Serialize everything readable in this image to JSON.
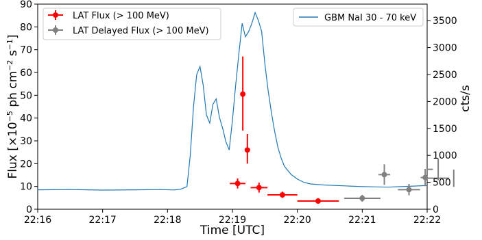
{
  "chart_data": {
    "type": "scatter",
    "x_axis": {
      "label": "Time [UTC]",
      "tick_labels": [
        "22:16",
        "22:17",
        "22:18",
        "22:19",
        "22:20",
        "22:21",
        "22:22"
      ],
      "range_minutes": [
        0,
        6
      ]
    },
    "y_left": {
      "label": "Flux [×10",
      "label_exp": "−5",
      "label_units": " ph cm",
      "label_exp2": "−2",
      "label_units2": " s",
      "label_exp3": "−1",
      "label_close": "]",
      "ticks": [
        0,
        10,
        20,
        30,
        40,
        50,
        60,
        70,
        80,
        90
      ],
      "ylim": [
        0,
        90
      ]
    },
    "y_right": {
      "label": "cts/s",
      "ticks": [
        0,
        500,
        1000,
        1500,
        2000,
        2500,
        3000,
        3500
      ],
      "ylim": [
        0,
        3807
      ]
    },
    "series": [
      {
        "name": "LAT Flux (> 100 MeV)",
        "color": "#ff0000",
        "axis": "left",
        "points": [
          {
            "x": 3.08,
            "y": 11.3,
            "xerr": [
              0.12,
              0.12
            ],
            "yerr": [
              2.2,
              2.2
            ]
          },
          {
            "x": 3.16,
            "y": 50.5,
            "xerr": [
              0.03,
              0.03
            ],
            "yerr": [
              16.0,
              16.5
            ]
          },
          {
            "x": 3.23,
            "y": 26.0,
            "xerr": [
              0.03,
              0.03
            ],
            "yerr": [
              6.0,
              7.0
            ]
          },
          {
            "x": 3.41,
            "y": 9.5,
            "xerr": [
              0.13,
              0.13
            ],
            "yerr": [
              2.2,
              2.2
            ]
          },
          {
            "x": 3.77,
            "y": 6.3,
            "xerr": [
              0.23,
              0.23
            ],
            "yerr": [
              1.3,
              1.4
            ]
          },
          {
            "x": 4.32,
            "y": 3.6,
            "xerr": [
              0.32,
              0.32
            ],
            "yerr": [
              0.4,
              0.4
            ]
          }
        ]
      },
      {
        "name": "LAT Delayed Flux (> 100 MeV)",
        "color": "#808080",
        "axis": "left",
        "points": [
          {
            "x": 5.0,
            "y": 4.8,
            "xerr": [
              0.28,
              0.28
            ],
            "yerr": [
              1.5,
              1.5
            ]
          },
          {
            "x": 5.34,
            "y": 15.2,
            "xerr": [
              0.09,
              0.09
            ],
            "yerr": [
              4.5,
              4.5
            ]
          },
          {
            "x": 5.72,
            "y": 8.6,
            "xerr": [
              0.17,
              0.17
            ],
            "yerr": [
              2.5,
              2.5
            ]
          },
          {
            "x": 5.97,
            "y": 13.9,
            "xerr": [
              0.07,
              0.07
            ],
            "yerr": [
              3.8,
              3.8
            ]
          },
          {
            "x": 6.17,
            "y": 17.5,
            "xerr": [
              0.08,
              0.08
            ],
            "yerr": [
              4.8,
              4.8
            ]
          },
          {
            "x": 6.41,
            "y": 13.6,
            "xerr": [
              0.07,
              0.07
            ],
            "yerr": [
              3.8,
              3.8
            ]
          }
        ]
      },
      {
        "name": "GBM NaI 30 - 70 keV",
        "color": "#1f77b4",
        "axis": "right",
        "type": "line",
        "points": [
          [
            0.0,
            360
          ],
          [
            0.5,
            365
          ],
          [
            1.0,
            355
          ],
          [
            1.5,
            360
          ],
          [
            1.9,
            365
          ],
          [
            2.1,
            358
          ],
          [
            2.2,
            370
          ],
          [
            2.3,
            420
          ],
          [
            2.35,
            1000
          ],
          [
            2.4,
            1900
          ],
          [
            2.45,
            2500
          ],
          [
            2.5,
            2650
          ],
          [
            2.55,
            2300
          ],
          [
            2.6,
            1750
          ],
          [
            2.65,
            1600
          ],
          [
            2.7,
            1950
          ],
          [
            2.75,
            2050
          ],
          [
            2.8,
            1700
          ],
          [
            2.85,
            1500
          ],
          [
            2.9,
            1250
          ],
          [
            2.95,
            1100
          ],
          [
            3.0,
            1650
          ],
          [
            3.05,
            2300
          ],
          [
            3.1,
            2900
          ],
          [
            3.15,
            3450
          ],
          [
            3.2,
            3200
          ],
          [
            3.25,
            3300
          ],
          [
            3.3,
            3450
          ],
          [
            3.35,
            3650
          ],
          [
            3.4,
            3500
          ],
          [
            3.45,
            3300
          ],
          [
            3.5,
            2700
          ],
          [
            3.55,
            2200
          ],
          [
            3.6,
            1800
          ],
          [
            3.65,
            1450
          ],
          [
            3.7,
            1150
          ],
          [
            3.75,
            950
          ],
          [
            3.8,
            800
          ],
          [
            3.9,
            650
          ],
          [
            4.0,
            560
          ],
          [
            4.1,
            500
          ],
          [
            4.2,
            470
          ],
          [
            4.4,
            450
          ],
          [
            4.6,
            440
          ],
          [
            4.8,
            430
          ],
          [
            5.0,
            420
          ],
          [
            5.2,
            415
          ],
          [
            5.4,
            410
          ],
          [
            5.6,
            420
          ],
          [
            5.8,
            430
          ],
          [
            6.0,
            440
          ],
          [
            6.2,
            450
          ],
          [
            6.4,
            460
          ],
          [
            6.6,
            450
          ]
        ]
      }
    ],
    "legend_left": "upper-left",
    "legend_right": "upper-right",
    "grid": false
  }
}
